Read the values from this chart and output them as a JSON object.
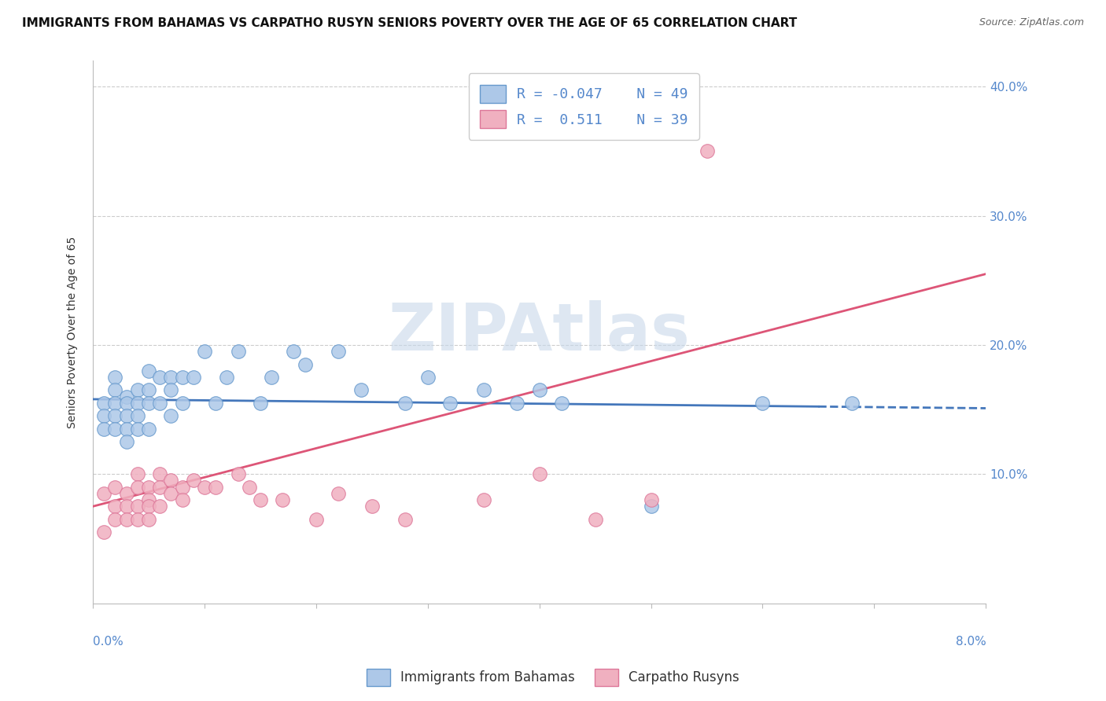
{
  "title": "IMMIGRANTS FROM BAHAMAS VS CARPATHO RUSYN SENIORS POVERTY OVER THE AGE OF 65 CORRELATION CHART",
  "source_text": "Source: ZipAtlas.com",
  "xlim": [
    0.0,
    0.08
  ],
  "ylim": [
    0.0,
    0.42
  ],
  "ytick_positions": [
    0.1,
    0.2,
    0.3,
    0.4
  ],
  "ytick_labels": [
    "10.0%",
    "20.0%",
    "30.0%",
    "40.0%"
  ],
  "series_blue": {
    "name": "Immigrants from Bahamas",
    "face_color": "#adc8e8",
    "edge_color": "#6699cc",
    "R": -0.047,
    "N": 49,
    "x": [
      0.001,
      0.001,
      0.001,
      0.002,
      0.002,
      0.002,
      0.002,
      0.002,
      0.003,
      0.003,
      0.003,
      0.003,
      0.003,
      0.004,
      0.004,
      0.004,
      0.004,
      0.005,
      0.005,
      0.005,
      0.005,
      0.006,
      0.006,
      0.007,
      0.007,
      0.007,
      0.008,
      0.008,
      0.009,
      0.01,
      0.011,
      0.012,
      0.013,
      0.015,
      0.016,
      0.018,
      0.019,
      0.022,
      0.024,
      0.028,
      0.03,
      0.032,
      0.035,
      0.038,
      0.04,
      0.042,
      0.05,
      0.06,
      0.068
    ],
    "y": [
      0.155,
      0.145,
      0.135,
      0.175,
      0.165,
      0.155,
      0.145,
      0.135,
      0.16,
      0.155,
      0.145,
      0.135,
      0.125,
      0.165,
      0.155,
      0.145,
      0.135,
      0.18,
      0.165,
      0.155,
      0.135,
      0.175,
      0.155,
      0.175,
      0.165,
      0.145,
      0.175,
      0.155,
      0.175,
      0.195,
      0.155,
      0.175,
      0.195,
      0.155,
      0.175,
      0.195,
      0.185,
      0.195,
      0.165,
      0.155,
      0.175,
      0.155,
      0.165,
      0.155,
      0.165,
      0.155,
      0.075,
      0.155,
      0.155
    ],
    "trend_x": [
      0.0,
      0.08
    ],
    "trend_y": [
      0.158,
      0.151
    ],
    "trend_style": "solid_then_dashed",
    "trend_color": "#4477bb",
    "trend_solid_end": 0.065
  },
  "series_pink": {
    "name": "Carpatho Rusyns",
    "face_color": "#f0b0c0",
    "edge_color": "#dd7799",
    "R": 0.511,
    "N": 39,
    "x": [
      0.001,
      0.001,
      0.002,
      0.002,
      0.002,
      0.003,
      0.003,
      0.003,
      0.004,
      0.004,
      0.004,
      0.004,
      0.005,
      0.005,
      0.005,
      0.005,
      0.006,
      0.006,
      0.006,
      0.007,
      0.007,
      0.008,
      0.008,
      0.009,
      0.01,
      0.011,
      0.013,
      0.014,
      0.015,
      0.017,
      0.02,
      0.022,
      0.025,
      0.028,
      0.035,
      0.04,
      0.045,
      0.05,
      0.055
    ],
    "y": [
      0.085,
      0.055,
      0.09,
      0.075,
      0.065,
      0.085,
      0.075,
      0.065,
      0.1,
      0.09,
      0.075,
      0.065,
      0.09,
      0.08,
      0.075,
      0.065,
      0.1,
      0.09,
      0.075,
      0.095,
      0.085,
      0.09,
      0.08,
      0.095,
      0.09,
      0.09,
      0.1,
      0.09,
      0.08,
      0.08,
      0.065,
      0.085,
      0.075,
      0.065,
      0.08,
      0.1,
      0.065,
      0.08,
      0.35
    ],
    "trend_x": [
      0.0,
      0.08
    ],
    "trend_y": [
      0.075,
      0.255
    ],
    "trend_color": "#dd5577"
  },
  "legend_R_blue": "R = -0.047",
  "legend_N_blue": "N = 49",
  "legend_R_pink": "R =  0.511",
  "legend_N_pink": "N = 39",
  "watermark": "ZIPAtlas",
  "watermark_color": "#c8d8ea",
  "background_color": "#ffffff",
  "title_fontsize": 11,
  "axis_label_fontsize": 10,
  "tick_fontsize": 11,
  "legend_fontsize": 13
}
